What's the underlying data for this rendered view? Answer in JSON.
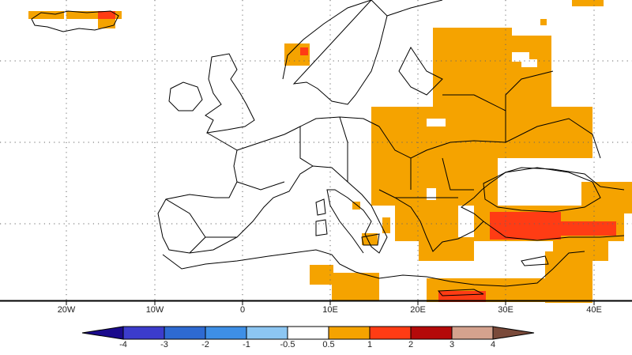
{
  "map": {
    "longitude_labels": [
      "20W",
      "10W",
      "0",
      "10E",
      "20E",
      "30E",
      "40E"
    ]
  },
  "colorbar": {
    "ticks": [
      "-4",
      "-3",
      "-2",
      "-1",
      "-0.5",
      "0.5",
      "1",
      "2",
      "3",
      "4"
    ],
    "colors": {
      "below_min": "#1a0a8c",
      "b1": "#3c3ccc",
      "b2": "#2e6ad2",
      "b3": "#3e8fe6",
      "b4": "#8cc6f2",
      "neutral": "#ffffff",
      "b6": "#f5a300",
      "b7": "#ff3c14",
      "b8": "#b40a0a",
      "b9": "#d4a28e",
      "above_max": "#7a4a3a"
    }
  },
  "anomaly_colors": {
    "moderate": "#f5a300",
    "strong": "#ff3c14"
  }
}
